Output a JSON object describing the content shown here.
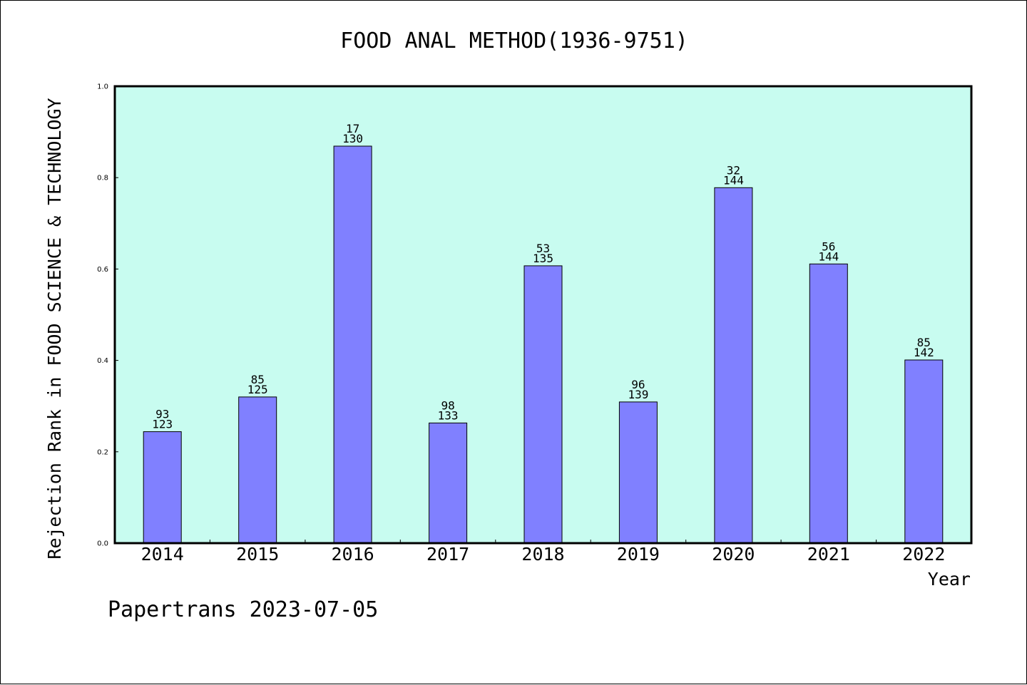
{
  "chart_data": {
    "type": "bar",
    "title": "FOOD ANAL METHOD(1936-9751)",
    "xlabel": "Year",
    "ylabel": "Rejection Rank in FOOD SCIENCE & TECHNOLOGY",
    "categories": [
      "2014",
      "2015",
      "2016",
      "2017",
      "2018",
      "2019",
      "2020",
      "2021",
      "2022"
    ],
    "values": [
      0.244,
      0.32,
      0.869,
      0.263,
      0.607,
      0.309,
      0.778,
      0.611,
      0.401
    ],
    "ranks": [
      "93",
      "85",
      "17",
      "98",
      "53",
      "96",
      "32",
      "56",
      "85"
    ],
    "totals": [
      "123",
      "125",
      "130",
      "133",
      "135",
      "139",
      "144",
      "144",
      "142"
    ],
    "ylim": [
      0,
      1.0
    ],
    "yticks": [
      "0.0",
      "0.2",
      "0.4",
      "0.6",
      "0.8",
      "1.0"
    ],
    "grid": false,
    "colors": {
      "plot_background": "#c8fcf0",
      "bar_fill": "#8080ff",
      "bar_edge": "#000000"
    }
  },
  "footer": {
    "text": "Papertrans 2023-07-05"
  }
}
